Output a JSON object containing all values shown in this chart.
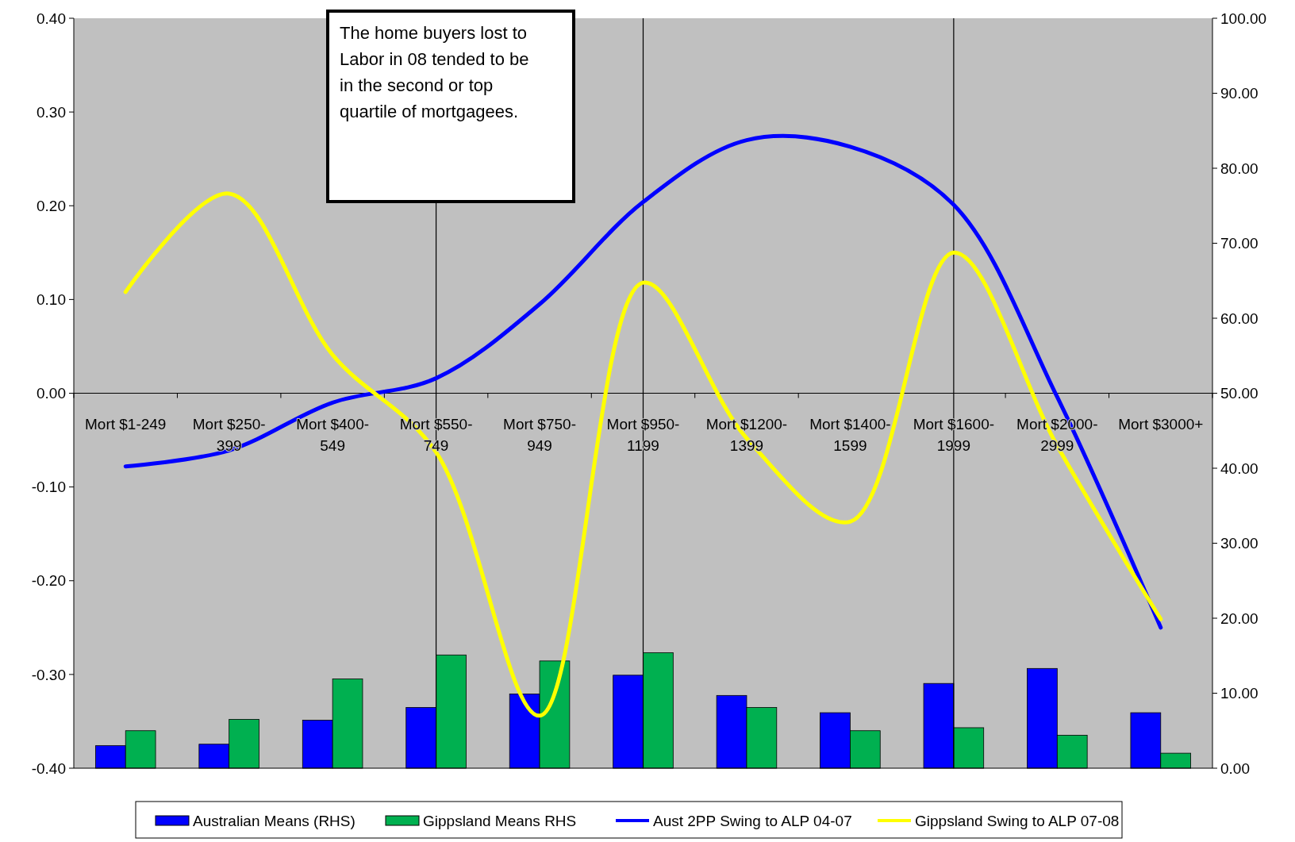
{
  "chart_data": {
    "type": "bar",
    "categories": [
      "Mort $1-249",
      "Mort $250-399",
      "Mort $400-549",
      "Mort $550-749",
      "Mort $750-949",
      "Mort $950-1199",
      "Mort $1200-1399",
      "Mort $1400-1599",
      "Mort $1600-1999",
      "Mort $2000-2999",
      "Mort $3000+"
    ],
    "series": [
      {
        "name": "Australian Means (RHS)",
        "axis": "y2",
        "color": "#0000ff",
        "values": [
          3.0,
          3.2,
          6.4,
          8.1,
          9.9,
          12.4,
          9.7,
          7.4,
          11.3,
          13.3,
          7.4
        ]
      },
      {
        "name": "Gippsland Means RHS",
        "axis": "y2",
        "color": "#00b050",
        "values": [
          5.0,
          6.5,
          11.9,
          15.1,
          14.3,
          15.4,
          8.1,
          5.0,
          5.4,
          4.4,
          2.0
        ]
      },
      {
        "name": "Aust 2PP Swing to ALP 04-07",
        "type": "line",
        "color": "#0000ff",
        "values": [
          -0.078,
          -0.061,
          -0.01,
          0.016,
          0.095,
          0.204,
          0.27,
          0.263,
          0.201,
          -0.004,
          -0.25
        ]
      },
      {
        "name": "Gippsland Swing to ALP 07-08",
        "type": "line",
        "color": "#ffff00",
        "values": [
          0.108,
          0.213,
          0.041,
          -0.063,
          -0.344,
          0.118,
          -0.048,
          -0.137,
          0.15,
          -0.056,
          -0.241
        ]
      }
    ],
    "ylim": [
      -0.4,
      0.4
    ],
    "yticks": [
      {
        "value": -0.4,
        "label": "-0.40"
      },
      {
        "value": -0.3,
        "label": "-0.30"
      },
      {
        "value": -0.2,
        "label": "-0.20"
      },
      {
        "value": -0.1,
        "label": "-0.10"
      },
      {
        "value": 0,
        "label": "0.00"
      },
      {
        "value": 0.1,
        "label": "0.10"
      },
      {
        "value": 0.2,
        "label": "0.20"
      },
      {
        "value": 0.3,
        "label": "0.30"
      },
      {
        "value": 0.4,
        "label": "0.40"
      }
    ],
    "y2lim": [
      0,
      100
    ],
    "y2ticks": [
      {
        "value": 0,
        "label": "0.00"
      },
      {
        "value": 10,
        "label": "10.00"
      },
      {
        "value": 20,
        "label": "20.00"
      },
      {
        "value": 30,
        "label": "30.00"
      },
      {
        "value": 40,
        "label": "40.00"
      },
      {
        "value": 50,
        "label": "50.00"
      },
      {
        "value": 60,
        "label": "60.00"
      },
      {
        "value": 70,
        "label": "70.00"
      },
      {
        "value": 80,
        "label": "80.00"
      },
      {
        "value": 90,
        "label": "90.00"
      },
      {
        "value": 100,
        "label": "100.00"
      }
    ],
    "ref_lines": [
      {
        "axis": "x",
        "value": "Mort $550-749"
      },
      {
        "axis": "x",
        "value": "Mort $950-1199"
      },
      {
        "axis": "x",
        "value": "Mort $1600-1999"
      }
    ],
    "annotations": [
      "The home buyers lost to Labor in 08 tended to be in the second or top quartile of mortgagees."
    ],
    "grid": false,
    "legend": "bottom"
  }
}
